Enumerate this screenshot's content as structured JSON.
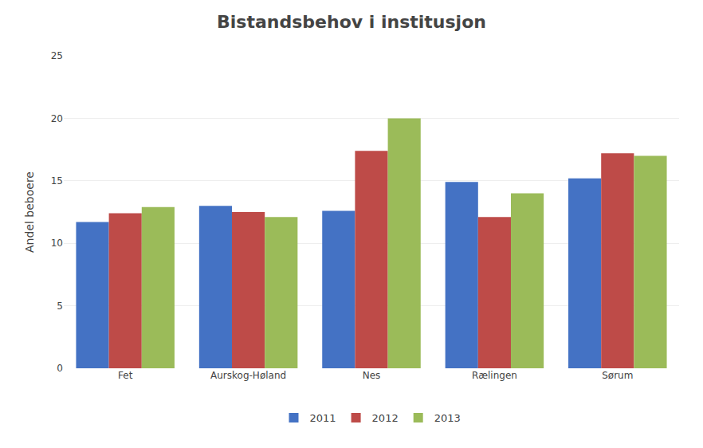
{
  "chart_data": {
    "type": "bar",
    "title": "Bistandsbehov i institusjon",
    "categories": [
      "Fet",
      "Aurskog-Høland",
      "Nes",
      "Rælingen",
      "Sørum"
    ],
    "series": [
      {
        "name": "2011",
        "color": "#4472C4",
        "values": [
          11.7,
          13.0,
          12.6,
          14.9,
          15.2
        ]
      },
      {
        "name": "2012",
        "color": "#BE4B48",
        "values": [
          12.4,
          12.5,
          17.4,
          12.1,
          17.2
        ]
      },
      {
        "name": "2013",
        "color": "#9BBB59",
        "values": [
          12.9,
          12.1,
          20.0,
          14.0,
          17.0
        ]
      }
    ],
    "ylabel": "Andel beboere",
    "ylim": [
      0,
      25
    ],
    "yticks": [
      0,
      5,
      10,
      15,
      20,
      25
    ],
    "grid": true,
    "legend": "bottom"
  }
}
